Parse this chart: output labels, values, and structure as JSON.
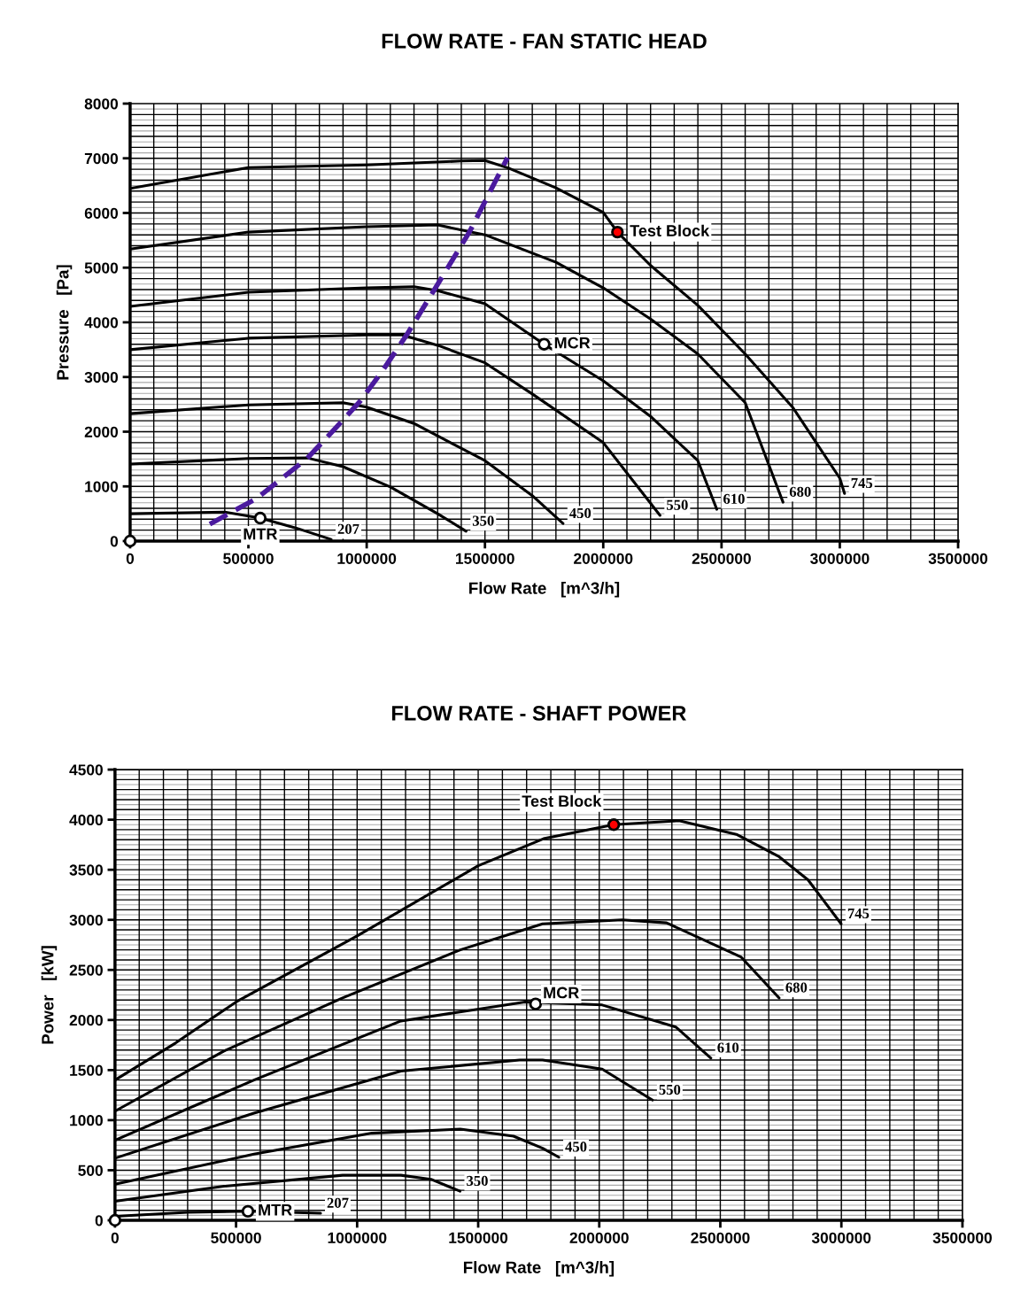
{
  "chart_data": [
    {
      "type": "line",
      "title": "FLOW RATE - FAN STATIC HEAD",
      "xlabel": "Flow Rate   [m^3/h]",
      "ylabel": "Pressure   [Pa]",
      "xlim": [
        0,
        3500000
      ],
      "xticks": [
        0,
        500000,
        1000000,
        1500000,
        2000000,
        2500000,
        3000000,
        3500000
      ],
      "ylim": [
        0,
        8000
      ],
      "yticks": [
        0,
        1000,
        2000,
        3000,
        4000,
        5000,
        6000,
        7000,
        8000
      ],
      "grid": true,
      "marker": "none",
      "line_style": "solid",
      "series": [
        {
          "name": "207",
          "color": "#000000",
          "x": [
            0,
            400000,
            550000,
            700000,
            850000
          ],
          "values": [
            500,
            530,
            420,
            240,
            30
          ]
        },
        {
          "name": "350",
          "color": "#000000",
          "x": [
            0,
            500000,
            750000,
            900000,
            1100000,
            1300000,
            1420000
          ],
          "values": [
            1410,
            1510,
            1520,
            1360,
            990,
            500,
            180
          ]
        },
        {
          "name": "450",
          "color": "#000000",
          "x": [
            0,
            500000,
            900000,
            1000000,
            1200000,
            1500000,
            1700000,
            1830000
          ],
          "values": [
            2330,
            2490,
            2530,
            2450,
            2150,
            1470,
            830,
            320
          ]
        },
        {
          "name": "550",
          "color": "#000000",
          "x": [
            0,
            500000,
            1000000,
            1150000,
            1300000,
            1500000,
            1700000,
            2000000,
            2240000
          ],
          "values": [
            3500,
            3710,
            3770,
            3770,
            3580,
            3260,
            2690,
            1800,
            470
          ]
        },
        {
          "name": "610",
          "color": "#000000",
          "x": [
            0,
            500000,
            1000000,
            1200000,
            1300000,
            1500000,
            1750000,
            2000000,
            2200000,
            2400000,
            2480000
          ],
          "values": [
            4290,
            4550,
            4630,
            4650,
            4580,
            4340,
            3600,
            2930,
            2280,
            1470,
            580
          ]
        },
        {
          "name": "680",
          "color": "#000000",
          "x": [
            0,
            500000,
            1000000,
            1300000,
            1500000,
            1800000,
            2000000,
            2200000,
            2400000,
            2600000,
            2760000
          ],
          "values": [
            5340,
            5650,
            5750,
            5780,
            5600,
            5100,
            4630,
            4060,
            3420,
            2530,
            710
          ]
        },
        {
          "name": "745",
          "color": "#000000",
          "x": [
            0,
            500000,
            1000000,
            1400000,
            1500000,
            1600000,
            1800000,
            2000000,
            2060000,
            2200000,
            2400000,
            2600000,
            2800000,
            3000000,
            3020000
          ],
          "values": [
            6450,
            6830,
            6880,
            6950,
            6960,
            6820,
            6460,
            6010,
            5650,
            5040,
            4310,
            3420,
            2450,
            1150,
            870
          ]
        },
        {
          "color": "#4b1a9e",
          "line_style": "dashed",
          "x": [
            337000,
            535000,
            748000,
            846000,
            973000,
            1071000,
            1172000,
            1295000,
            1434000,
            1595000
          ],
          "values": [
            310,
            780,
            1510,
            1960,
            2560,
            3140,
            3790,
            4660,
            5650,
            7010
          ]
        },
        {
          "type": "scatter",
          "marker": "circle",
          "color": "#000000",
          "x": [
            0,
            550000,
            1750000
          ],
          "values": [
            0,
            420,
            3600
          ]
        },
        {
          "type": "scatter",
          "marker": "circle",
          "color": "#ff0000",
          "x": [
            2060000
          ],
          "values": [
            5650
          ]
        }
      ],
      "annotations": [
        {
          "text": "Test Block",
          "x": 2060000,
          "y": 5650
        },
        {
          "text": "MCR",
          "x": 1750000,
          "y": 3600
        },
        {
          "text": "MTR",
          "x": 550000,
          "y": 420
        }
      ]
    },
    {
      "type": "line",
      "title": "FLOW RATE - SHAFT POWER",
      "xlabel": "Flow Rate   [m^3/h]",
      "ylabel": "Power   [kW]",
      "xlim": [
        0,
        3500000
      ],
      "xticks": [
        0,
        500000,
        1000000,
        1500000,
        2000000,
        2500000,
        3000000,
        3500000
      ],
      "ylim": [
        0,
        4500
      ],
      "yticks": [
        0,
        500,
        1000,
        1500,
        2000,
        2500,
        3000,
        3500,
        4000,
        4500
      ],
      "grid": true,
      "marker": "none",
      "line_style": "solid",
      "series": [
        {
          "name": "207",
          "color": "#000000",
          "x": [
            0,
            300000,
            549000,
            849000
          ],
          "values": [
            40,
            80,
            90,
            70
          ]
        },
        {
          "name": "350",
          "color": "#000000",
          "x": [
            0,
            450000,
            940000,
            1181000,
            1305000,
            1425000
          ],
          "values": [
            190,
            340,
            450,
            450,
            410,
            290
          ]
        },
        {
          "name": "450",
          "color": "#000000",
          "x": [
            0,
            574000,
            1061000,
            1426000,
            1646000,
            1766000,
            1833000
          ],
          "values": [
            360,
            660,
            870,
            910,
            840,
            720,
            630
          ]
        },
        {
          "name": "550",
          "color": "#000000",
          "x": [
            0,
            574000,
            1181000,
            1671000,
            1766000,
            2012000,
            2220000
          ],
          "values": [
            620,
            1070,
            1490,
            1600,
            1600,
            1510,
            1200
          ]
        },
        {
          "name": "610",
          "color": "#000000",
          "x": [
            0,
            574000,
            1181000,
            1693000,
            2012000,
            2316000,
            2461000
          ],
          "values": [
            800,
            1400,
            1990,
            2180,
            2150,
            1930,
            1620
          ]
        },
        {
          "name": "680",
          "color": "#000000",
          "x": [
            0,
            450000,
            940000,
            1426000,
            1766000,
            2095000,
            2278000,
            2585000,
            2743000
          ],
          "values": [
            1090,
            1690,
            2220,
            2700,
            2960,
            3000,
            2970,
            2630,
            2220
          ]
        },
        {
          "name": "745",
          "color": "#000000",
          "x": [
            0,
            250000,
            500000,
            1000000,
            1500000,
            1770000,
            2060000,
            2330000,
            2570000,
            2743000,
            2862000,
            2999000
          ],
          "values": [
            1400,
            1770,
            2180,
            2840,
            3540,
            3810,
            3950,
            3990,
            3850,
            3630,
            3400,
            2960
          ]
        },
        {
          "type": "scatter",
          "marker": "circle",
          "color": "#000000",
          "x": [
            0,
            549000,
            1737000
          ],
          "values": [
            0,
            90,
            2160
          ]
        },
        {
          "type": "scatter",
          "marker": "circle",
          "color": "#ff0000",
          "x": [
            2060000
          ],
          "values": [
            3950
          ]
        }
      ],
      "annotations": [
        {
          "text": "Test Block",
          "x": 2060000,
          "y": 3950
        },
        {
          "text": "MCR",
          "x": 1737000,
          "y": 2160
        },
        {
          "text": "MTR",
          "x": 549000,
          "y": 90
        }
      ]
    }
  ]
}
